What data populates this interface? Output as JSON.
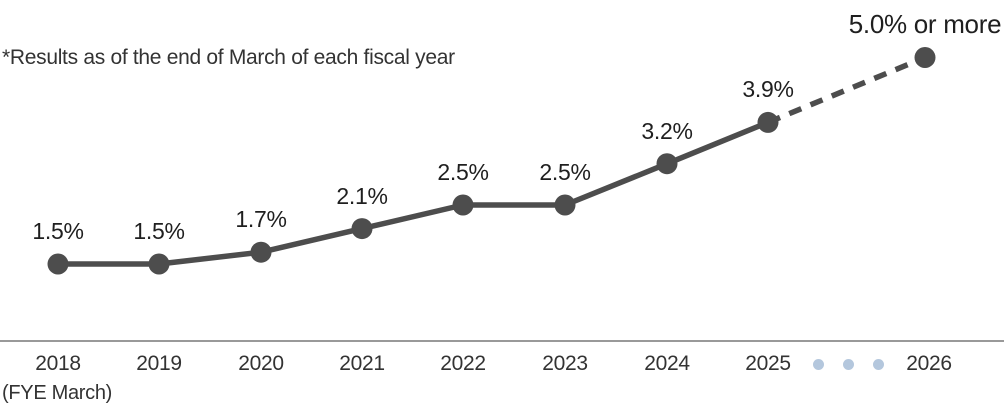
{
  "annotation": "*Results as of the end of March of each fiscal year",
  "chart_data": {
    "type": "line",
    "categories": [
      "2018",
      "2019",
      "2020",
      "2021",
      "2022",
      "2023",
      "2024",
      "2025",
      "2026"
    ],
    "values": [
      1.5,
      1.5,
      1.7,
      2.1,
      2.5,
      2.5,
      3.2,
      3.9,
      5.0
    ],
    "point_labels": [
      "1.5%",
      "1.5%",
      "1.7%",
      "2.1%",
      "2.5%",
      "2.5%",
      "3.2%",
      "3.9%",
      "5.0% or more"
    ],
    "xlabel_note": "(FYE March)",
    "ylim": [
      1.0,
      5.6
    ],
    "grid": false,
    "legend": false,
    "last_segment_dashed": true,
    "ellipsis_between": [
      "2025",
      "2026"
    ],
    "ellipsis_dot_count": 3,
    "colors": {
      "line": "#4d4d4d",
      "point": "#4d4d4d",
      "axis_line": "#999999",
      "ellipsis_dot": "#b4c7dd",
      "text": "#1f1f1f"
    }
  }
}
